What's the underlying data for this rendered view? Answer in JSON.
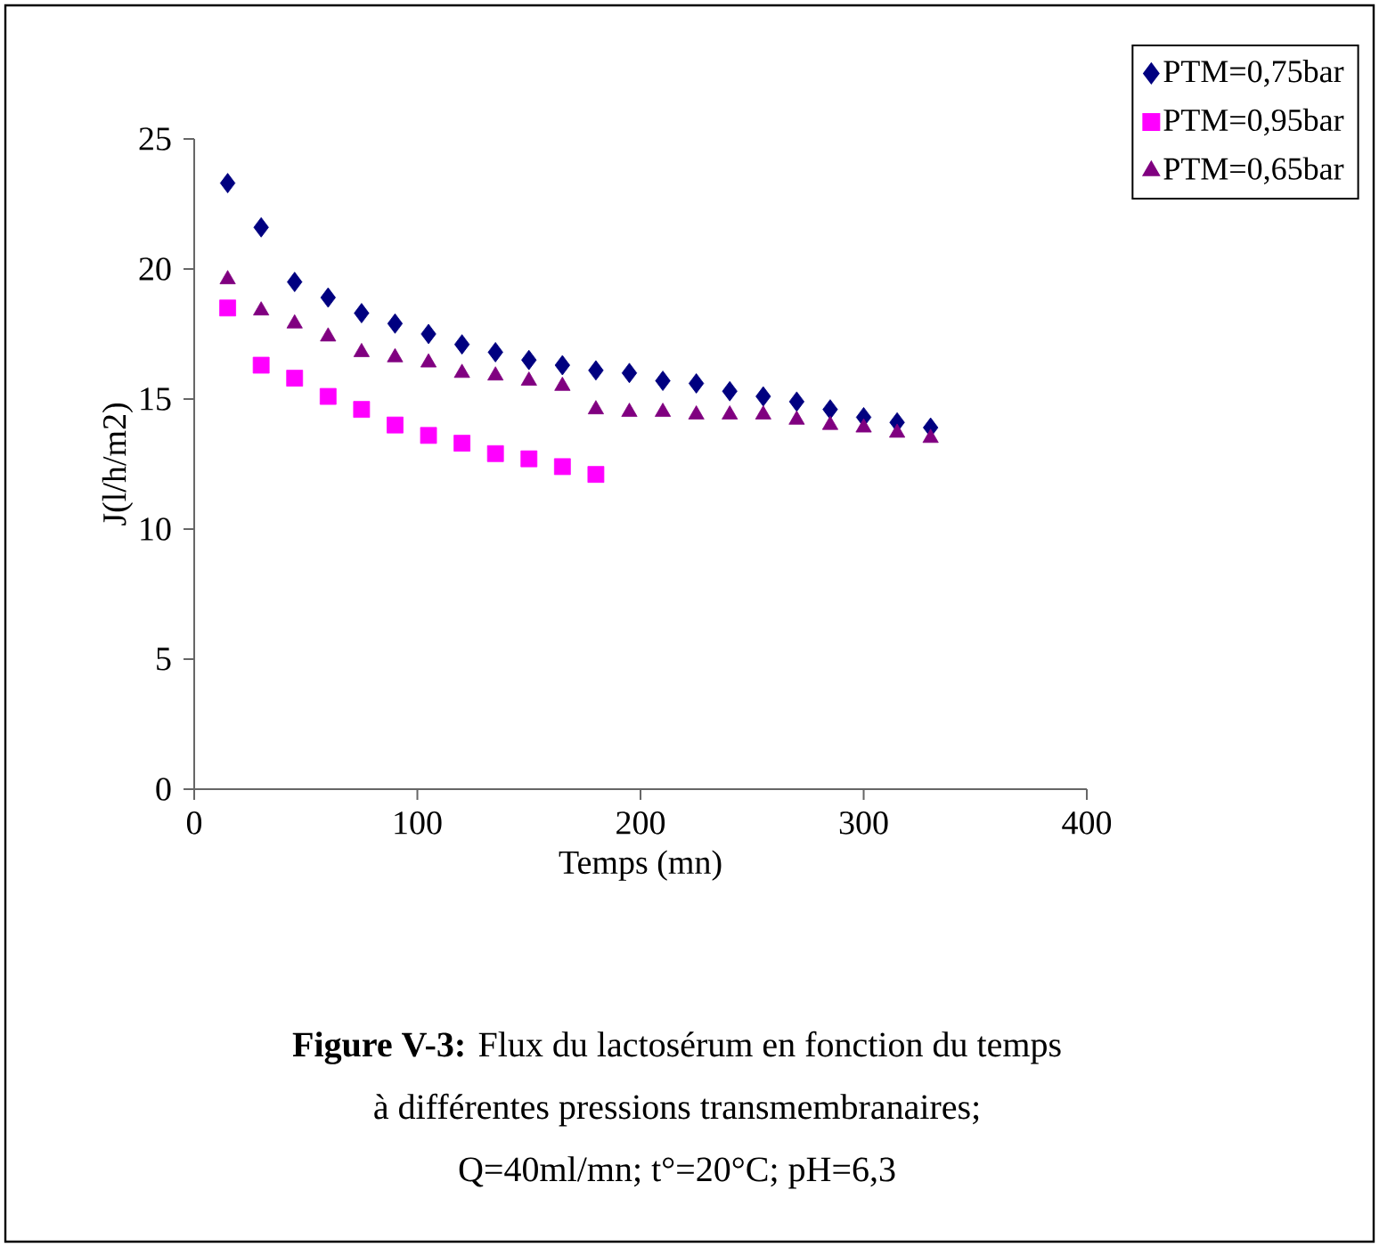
{
  "chart_data": {
    "type": "scatter",
    "xlabel": "Temps (mn)",
    "ylabel": "J(l/h/m2)",
    "xlim": [
      0,
      400
    ],
    "xticks": [
      0,
      100,
      200,
      300,
      400
    ],
    "ylim": [
      0,
      25
    ],
    "yticks": [
      0,
      5,
      10,
      15,
      20,
      25
    ],
    "grid": false,
    "legend": "top right",
    "series": [
      {
        "name": "PTM=0,75bar",
        "color": "#000080",
        "marker": "diamond",
        "x": [
          15,
          30,
          45,
          60,
          75,
          90,
          105,
          120,
          135,
          150,
          165,
          180,
          195,
          210,
          225,
          240,
          255,
          270,
          285,
          300,
          315,
          330
        ],
        "values": [
          23.3,
          21.6,
          19.5,
          18.9,
          18.3,
          17.9,
          17.5,
          17.1,
          16.8,
          16.5,
          16.3,
          16.1,
          16.0,
          15.7,
          15.6,
          15.3,
          15.1,
          14.9,
          14.6,
          14.3,
          14.1,
          13.9
        ]
      },
      {
        "name": "PTM=0,95bar",
        "color": "#ff00ff",
        "marker": "square",
        "x": [
          15,
          30,
          45,
          60,
          75,
          90,
          105,
          120,
          135,
          150,
          165,
          180
        ],
        "values": [
          18.5,
          16.3,
          15.8,
          15.1,
          14.6,
          14.0,
          13.6,
          13.3,
          12.9,
          12.7,
          12.4,
          12.1
        ]
      },
      {
        "name": "PTM=0,65bar",
        "color": "#800080",
        "marker": "triangle",
        "x": [
          15,
          30,
          45,
          60,
          75,
          90,
          105,
          120,
          135,
          150,
          165,
          180,
          195,
          210,
          225,
          240,
          255,
          270,
          285,
          300,
          315,
          330
        ],
        "values": [
          19.6,
          18.4,
          17.9,
          17.4,
          16.8,
          16.6,
          16.4,
          16.0,
          15.9,
          15.7,
          15.5,
          14.6,
          14.5,
          14.5,
          14.4,
          14.4,
          14.4,
          14.2,
          14.0,
          13.9,
          13.7,
          13.5
        ]
      }
    ],
    "annotations": [
      "**Figure V-3:** Flux du lactosérum en fonction du temps",
      "à différentes pressions transmembranaires;",
      "Q=40ml/mn; t°=20°C; pH=6,3"
    ]
  }
}
